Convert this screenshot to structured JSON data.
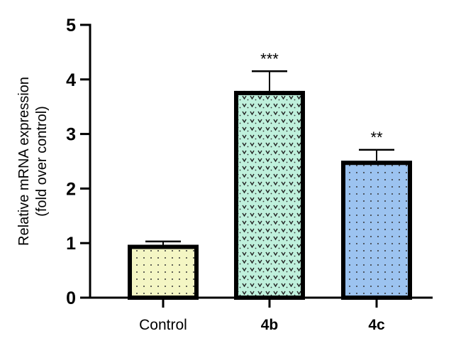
{
  "chart_data": {
    "type": "bar",
    "title": "",
    "xlabel": "",
    "ylabel": "Relative mRNA expression",
    "ylabel_line2": "(fold over control)",
    "ylim": [
      0,
      5
    ],
    "yticks": [
      "0",
      "1",
      "2",
      "3",
      "4",
      "5"
    ],
    "grid": false,
    "categories": [
      "Control",
      "4b",
      "4c"
    ],
    "values": [
      0.97,
      3.79,
      2.51
    ],
    "errors": [
      0.06,
      0.36,
      0.2
    ],
    "significance": [
      "",
      "***",
      "**"
    ],
    "bar_colors": [
      "#f4f6c4",
      "#bff0dc",
      "#9cc3f0"
    ],
    "category_bold": [
      false,
      true,
      true
    ]
  }
}
